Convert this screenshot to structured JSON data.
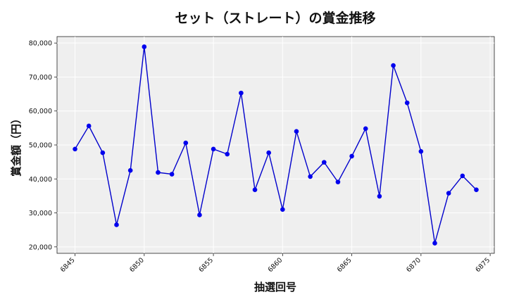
{
  "chart_data": {
    "type": "line",
    "title": "セット（ストレート）の賞金推移",
    "xlabel": "抽選回号",
    "ylabel": "賞金額（円）",
    "xlim": [
      6843.7,
      6875.3
    ],
    "ylim": [
      18100,
      81900
    ],
    "xticks": [
      6845,
      6850,
      6855,
      6860,
      6865,
      6870,
      6875
    ],
    "yticks": [
      20000,
      30000,
      40000,
      50000,
      60000,
      70000,
      80000
    ],
    "ytick_labels": [
      "20,000",
      "30,000",
      "40,000",
      "50,000",
      "60,000",
      "70,000",
      "80,000"
    ],
    "grid": true,
    "colors": {
      "line": "#0000cc",
      "marker": "#0000ee",
      "plot_bg": "#efefef",
      "grid": "#ffffff"
    },
    "series": [
      {
        "x": [
          6845,
          6846,
          6847,
          6848,
          6849,
          6850,
          6851,
          6852,
          6853,
          6854,
          6855,
          6856,
          6857,
          6858,
          6859,
          6860,
          6861,
          6862,
          6863,
          6864,
          6865,
          6866,
          6867,
          6868,
          6869,
          6870,
          6871,
          6872,
          6873,
          6874
        ],
        "values": [
          48800,
          55600,
          47700,
          26500,
          42500,
          78900,
          41900,
          41400,
          50600,
          29400,
          48800,
          47300,
          65300,
          36800,
          47700,
          31000,
          54000,
          40700,
          44900,
          39100,
          46700,
          54800,
          34900,
          73400,
          62400,
          48100,
          21100,
          35800,
          40900,
          36800
        ]
      }
    ]
  }
}
